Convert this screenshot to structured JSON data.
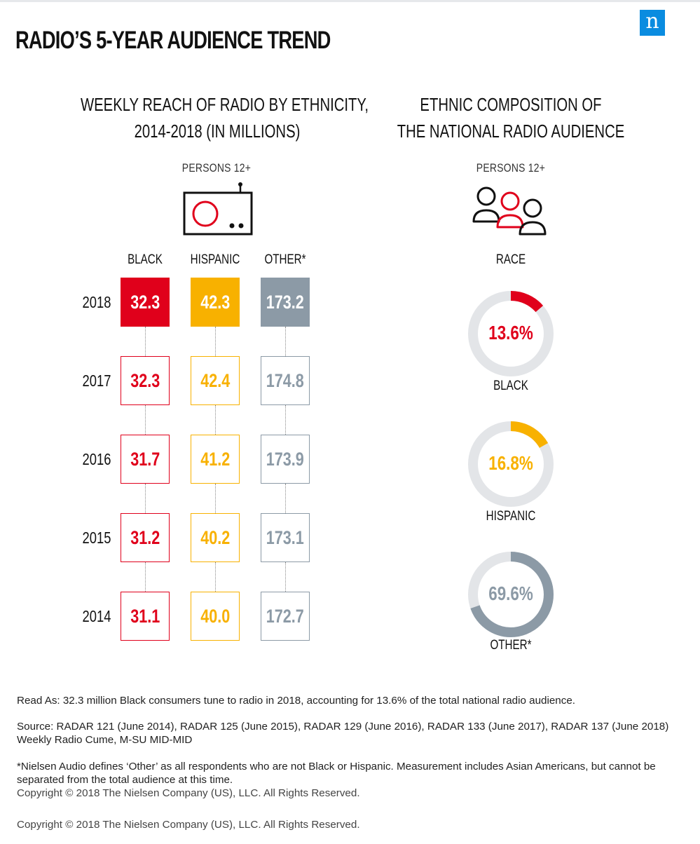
{
  "title": "RADIO’S 5-YEAR AUDIENCE TREND",
  "logo_letter": "n",
  "left_panel": {
    "title_line1": "WEEKLY REACH OF RADIO BY ETHNICITY,",
    "title_line2": "2014-2018 (IN MILLIONS)",
    "persons_label": "PERSONS 12+",
    "icon": "radio-icon"
  },
  "right_panel": {
    "title_line1": "ETHNIC COMPOSITION OF",
    "title_line2": "THE NATIONAL RADIO AUDIENCE",
    "persons_label": "PERSONS 12+",
    "icon": "people-icon",
    "race_label": "RACE"
  },
  "colors": {
    "black": "#e0001b",
    "hispanic": "#f8b100",
    "other": "#8c9aa6",
    "track": "#e3e5e8"
  },
  "chart_data": [
    {
      "type": "table",
      "title": "WEEKLY REACH OF RADIO BY ETHNICITY, 2014-2018 (IN MILLIONS)",
      "columns": [
        "BLACK",
        "HISPANIC",
        "OTHER*"
      ],
      "years": [
        "2018",
        "2017",
        "2016",
        "2015",
        "2014"
      ],
      "series": [
        {
          "name": "BLACK",
          "values": [
            "32.3",
            "32.3",
            "31.7",
            "31.2",
            "31.1"
          ]
        },
        {
          "name": "HISPANIC",
          "values": [
            "42.3",
            "42.4",
            "41.2",
            "40.2",
            "40.0"
          ]
        },
        {
          "name": "OTHER*",
          "values": [
            "173.2",
            "174.8",
            "173.9",
            "173.1",
            "172.7"
          ]
        }
      ]
    },
    {
      "type": "pie",
      "title": "ETHNIC COMPOSITION OF THE NATIONAL RADIO AUDIENCE",
      "slices": [
        {
          "name": "BLACK",
          "label": "13.6%",
          "value": 13.6
        },
        {
          "name": "HISPANIC",
          "label": "16.8%",
          "value": 16.8
        },
        {
          "name": "OTHER*",
          "label": "69.6%",
          "value": 69.6
        }
      ]
    }
  ],
  "footer": {
    "read_as": "Read As: 32.3 million Black consumers tune to radio in 2018, accounting for 13.6% of the total national radio audience.",
    "source": "Source: RADAR 121 (June 2014), RADAR 125 (June 2015), RADAR 129 (June 2016), RADAR 133 (June 2017), RADAR 137 (June 2018) Weekly Radio Cume, M-SU MID-MID",
    "note": "*Nielsen Audio defines ‘Other’ as all respondents who are not Black or Hispanic. Measurement includes Asian Americans, but cannot be separated from the total audience at this time.",
    "copyright_1": "Copyright © 2018 The Nielsen Company (US), LLC. All Rights Reserved.",
    "copyright_2": "Copyright © 2018 The Nielsen Company (US), LLC. All Rights Reserved."
  }
}
